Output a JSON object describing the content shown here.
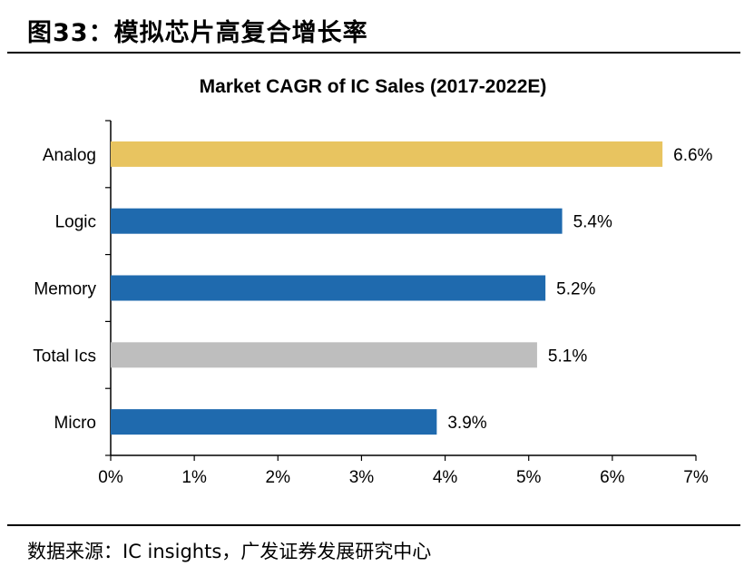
{
  "figure": {
    "title": "图33：模拟芯片高复合增长率",
    "source": "数据来源：IC insights，广发证券发展研究中心"
  },
  "chart_data": {
    "type": "bar",
    "orientation": "horizontal",
    "title": "Market CAGR of IC Sales (2017-2022E)",
    "categories": [
      "Analog",
      "Logic",
      "Memory",
      "Total Ics",
      "Micro"
    ],
    "values": [
      6.6,
      5.4,
      5.2,
      5.1,
      3.9
    ],
    "value_labels": [
      "6.6%",
      "5.4%",
      "5.2%",
      "5.1%",
      "3.9%"
    ],
    "bar_colors": [
      "#E8C460",
      "#1F6AAE",
      "#1F6AAE",
      "#BEBEBE",
      "#1F6AAE"
    ],
    "xlim": [
      0,
      7
    ],
    "x_ticks": [
      0,
      1,
      2,
      3,
      4,
      5,
      6,
      7
    ],
    "x_tick_labels": [
      "0%",
      "1%",
      "2%",
      "3%",
      "4%",
      "5%",
      "6%",
      "7%"
    ],
    "xlabel": "",
    "ylabel": "",
    "grid": false,
    "legend": "none"
  }
}
